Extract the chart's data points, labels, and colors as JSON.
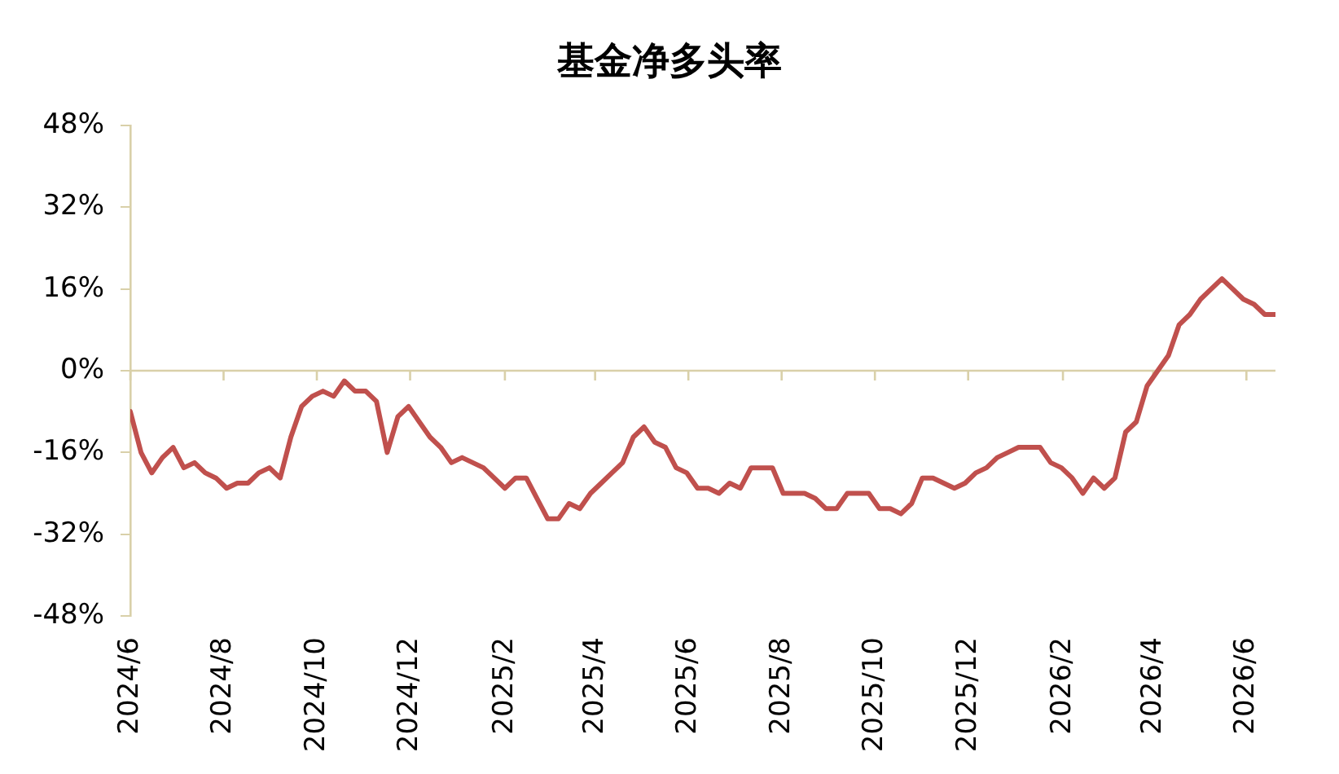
{
  "chart_data": {
    "type": "line",
    "title": "基金净多头率",
    "x": [
      "2024-06-04",
      "2024-06-11",
      "2024-06-18",
      "2024-06-25",
      "2024-07-02",
      "2024-07-09",
      "2024-07-16",
      "2024-07-23",
      "2024-07-30",
      "2024-08-06",
      "2024-08-13",
      "2024-08-20",
      "2024-08-27",
      "2024-09-03",
      "2024-09-10",
      "2024-09-17",
      "2024-09-24",
      "2024-10-01",
      "2024-10-08",
      "2024-10-15",
      "2024-10-22",
      "2024-10-29",
      "2024-11-05",
      "2024-11-12",
      "2024-11-19",
      "2024-11-26",
      "2024-12-03",
      "2024-12-10",
      "2024-12-17",
      "2024-12-24",
      "2024-12-31",
      "2025-01-07",
      "2025-01-14",
      "2025-01-21",
      "2025-01-28",
      "2025-02-04",
      "2025-02-11",
      "2025-02-18",
      "2025-02-25",
      "2025-03-04",
      "2025-03-11",
      "2025-03-18",
      "2025-03-25",
      "2025-04-01",
      "2025-04-08",
      "2025-04-15",
      "2025-04-22",
      "2025-04-29",
      "2025-05-06",
      "2025-05-13",
      "2025-05-20",
      "2025-05-27",
      "2025-06-03",
      "2025-06-10",
      "2025-06-17",
      "2025-06-24",
      "2025-07-01",
      "2025-07-08",
      "2025-07-15",
      "2025-07-22",
      "2025-07-29",
      "2025-08-05",
      "2025-08-12",
      "2025-08-19",
      "2025-08-26",
      "2025-09-02",
      "2025-09-09",
      "2025-09-16",
      "2025-09-23",
      "2025-09-30",
      "2025-10-07",
      "2025-10-14",
      "2025-10-21",
      "2025-10-28",
      "2025-11-04",
      "2025-11-11",
      "2025-11-18",
      "2025-11-25",
      "2025-12-02",
      "2025-12-09",
      "2025-12-16",
      "2025-12-23",
      "2025-12-30",
      "2026-01-06",
      "2026-01-13",
      "2026-01-20",
      "2026-01-27",
      "2026-02-03",
      "2026-02-10",
      "2026-02-17",
      "2026-02-24",
      "2026-03-03",
      "2026-03-10",
      "2026-03-17",
      "2026-03-24",
      "2026-03-31",
      "2026-04-07",
      "2026-04-14",
      "2026-04-21",
      "2026-04-28",
      "2026-05-05",
      "2026-05-12",
      "2026-05-19",
      "2026-05-26",
      "2026-06-02",
      "2026-06-09",
      "2026-06-16",
      "2026-06-23"
    ],
    "values": [
      -8,
      -16,
      -20,
      -17,
      -15,
      -19,
      -18,
      -20,
      -21,
      -23,
      -22,
      -22,
      -20,
      -19,
      -21,
      -13,
      -7,
      -5,
      -4,
      -5,
      -2,
      -4,
      -4,
      -6,
      -16,
      -9,
      -7,
      -10,
      -13,
      -15,
      -18,
      -17,
      -18,
      -19,
      -21,
      -23,
      -21,
      -21,
      -25,
      -29,
      -29,
      -26,
      -27,
      -24,
      -22,
      -20,
      -18,
      -13,
      -11,
      -14,
      -15,
      -19,
      -20,
      -23,
      -23,
      -24,
      -22,
      -23,
      -19,
      -19,
      -19,
      -24,
      -24,
      -24,
      -25,
      -27,
      -27,
      -24,
      -24,
      -24,
      -27,
      -27,
      -28,
      -26,
      -21,
      -21,
      -22,
      -23,
      -22,
      -20,
      -19,
      -17,
      -16,
      -15,
      -15,
      -15,
      -18,
      -19,
      -21,
      -24,
      -21,
      -23,
      -21,
      -12,
      -10,
      -3,
      0,
      3,
      9,
      11,
      14,
      16,
      18,
      16,
      14,
      13,
      11,
      11
    ],
    "color": "#c0504d",
    "line_style": "solid",
    "xlim": [
      "2024-06-04",
      "2026-06-23"
    ],
    "xticks": [
      {
        "value": "2024-06-04",
        "label": "2024/6"
      },
      {
        "value": "2024-08-04",
        "label": "2024/8"
      },
      {
        "value": "2024-10-04",
        "label": "2024/10"
      },
      {
        "value": "2024-12-04",
        "label": "2024/12"
      },
      {
        "value": "2025-02-04",
        "label": "2025/2"
      },
      {
        "value": "2025-04-04",
        "label": "2025/4"
      },
      {
        "value": "2025-06-04",
        "label": "2025/6"
      },
      {
        "value": "2025-08-04",
        "label": "2025/8"
      },
      {
        "value": "2025-10-04",
        "label": "2025/10"
      },
      {
        "value": "2025-12-04",
        "label": "2025/12"
      },
      {
        "value": "2026-02-04",
        "label": "2026/2"
      },
      {
        "value": "2026-04-04",
        "label": "2026/4"
      },
      {
        "value": "2026-06-04",
        "label": "2026/6"
      }
    ],
    "ylim": [
      -48,
      48
    ],
    "yticks": [
      {
        "value": -48,
        "label": "-48%"
      },
      {
        "value": -32,
        "label": "-32%"
      },
      {
        "value": -16,
        "label": "-16%"
      },
      {
        "value": 0,
        "label": "0%"
      },
      {
        "value": 16,
        "label": "16%"
      },
      {
        "value": 32,
        "label": "32%"
      },
      {
        "value": 48,
        "label": "48%"
      }
    ],
    "ref_lines": [
      {
        "axis": "y",
        "value": 0,
        "color": "#d9d0a9"
      }
    ]
  }
}
